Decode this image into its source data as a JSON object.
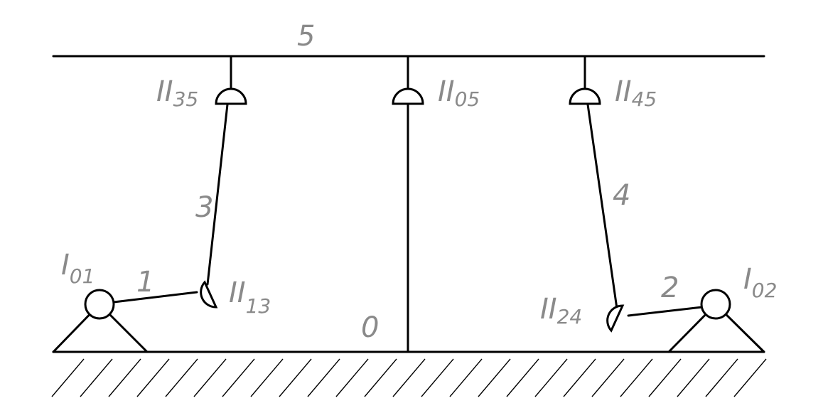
{
  "labels": {
    "link_5": "5",
    "link_3": "3",
    "link_4": "4",
    "link_1": "1",
    "link_2": "2",
    "ground": "0",
    "pair_35": {
      "main": "II",
      "sub": "35"
    },
    "pair_05": {
      "main": "II",
      "sub": "05"
    },
    "pair_45": {
      "main": "II",
      "sub": "45"
    },
    "pair_13": {
      "main": "II",
      "sub": "13"
    },
    "pair_24": {
      "main": "II",
      "sub": "24"
    },
    "pair_01": {
      "main": "I",
      "sub": "01"
    },
    "pair_02": {
      "main": "I",
      "sub": "02"
    }
  },
  "colors": {
    "line": "#000000",
    "label": "#8a8a8a",
    "background": "#ffffff"
  }
}
